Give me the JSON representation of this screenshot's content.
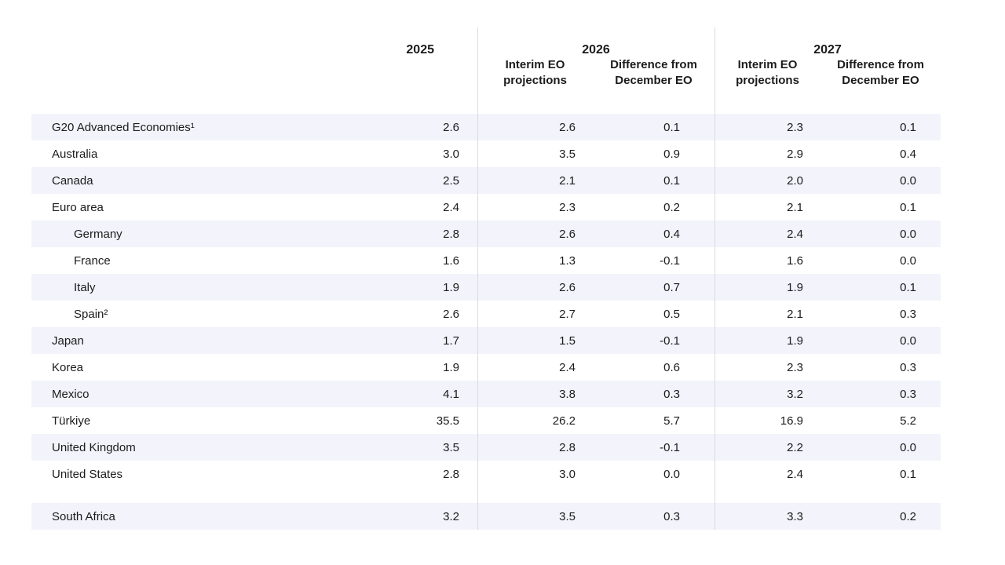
{
  "table": {
    "header": {
      "y2025": "2025",
      "y2026": "2026",
      "y2027": "2027",
      "sub_interim": "Interim EO projections",
      "sub_difference": "Difference from December EO"
    },
    "columns": [
      "2025",
      "2026 Interim EO projections",
      "2026 Difference from December EO",
      "2027 Interim EO projections",
      "2027 Difference from December EO"
    ],
    "rows": [
      {
        "label": "G20 Advanced Economies¹",
        "indent": false,
        "shaded": true,
        "gap_before": false,
        "values": [
          "2.6",
          "2.6",
          "0.1",
          "2.3",
          "0.1"
        ]
      },
      {
        "label": "Australia",
        "indent": false,
        "shaded": false,
        "gap_before": false,
        "values": [
          "3.0",
          "3.5",
          "0.9",
          "2.9",
          "0.4"
        ]
      },
      {
        "label": "Canada",
        "indent": false,
        "shaded": true,
        "gap_before": false,
        "values": [
          "2.5",
          "2.1",
          "0.1",
          "2.0",
          "0.0"
        ]
      },
      {
        "label": "Euro area",
        "indent": false,
        "shaded": false,
        "gap_before": false,
        "values": [
          "2.4",
          "2.3",
          "0.2",
          "2.1",
          "0.1"
        ]
      },
      {
        "label": "Germany",
        "indent": true,
        "shaded": true,
        "gap_before": false,
        "values": [
          "2.8",
          "2.6",
          "0.4",
          "2.4",
          "0.0"
        ]
      },
      {
        "label": "France",
        "indent": true,
        "shaded": false,
        "gap_before": false,
        "values": [
          "1.6",
          "1.3",
          "-0.1",
          "1.6",
          "0.0"
        ]
      },
      {
        "label": "Italy",
        "indent": true,
        "shaded": true,
        "gap_before": false,
        "values": [
          "1.9",
          "2.6",
          "0.7",
          "1.9",
          "0.1"
        ]
      },
      {
        "label": "Spain²",
        "indent": true,
        "shaded": false,
        "gap_before": false,
        "values": [
          "2.6",
          "2.7",
          "0.5",
          "2.1",
          "0.3"
        ]
      },
      {
        "label": "Japan",
        "indent": false,
        "shaded": true,
        "gap_before": false,
        "values": [
          "1.7",
          "1.5",
          "-0.1",
          "1.9",
          "0.0"
        ]
      },
      {
        "label": "Korea",
        "indent": false,
        "shaded": false,
        "gap_before": false,
        "values": [
          "1.9",
          "2.4",
          "0.6",
          "2.3",
          "0.3"
        ]
      },
      {
        "label": "Mexico",
        "indent": false,
        "shaded": true,
        "gap_before": false,
        "values": [
          "4.1",
          "3.8",
          "0.3",
          "3.2",
          "0.3"
        ]
      },
      {
        "label": "Türkiye",
        "indent": false,
        "shaded": false,
        "gap_before": false,
        "values": [
          "35.5",
          "26.2",
          "5.7",
          "16.9",
          "5.2"
        ]
      },
      {
        "label": "United Kingdom",
        "indent": false,
        "shaded": true,
        "gap_before": false,
        "values": [
          "3.5",
          "2.8",
          "-0.1",
          "2.2",
          "0.0"
        ]
      },
      {
        "label": "United States",
        "indent": false,
        "shaded": false,
        "gap_before": false,
        "values": [
          "2.8",
          "3.0",
          "0.0",
          "2.4",
          "0.1"
        ]
      },
      {
        "label": "South Africa",
        "indent": false,
        "shaded": true,
        "gap_before": true,
        "values": [
          "3.2",
          "3.5",
          "0.3",
          "3.3",
          "0.2"
        ]
      }
    ]
  },
  "colors": {
    "row_shade": "#f2f3fb",
    "divider": "#dcdcdc",
    "text": "#1c1c1c"
  }
}
